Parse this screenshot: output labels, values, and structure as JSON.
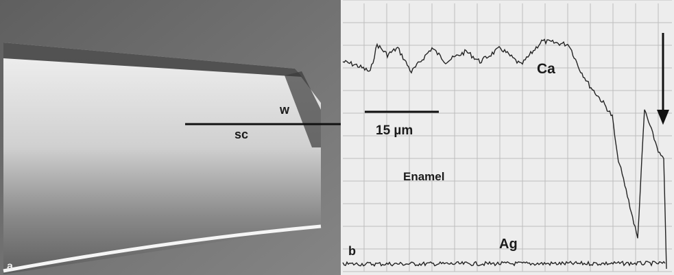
{
  "panel_a": {
    "label": "a",
    "annotations": [
      "w",
      "sc"
    ]
  },
  "panel_b": {
    "label": "b",
    "scale_bar": "15 µm",
    "traces": [
      "Ca",
      "Ag"
    ],
    "region": "Enamel"
  }
}
